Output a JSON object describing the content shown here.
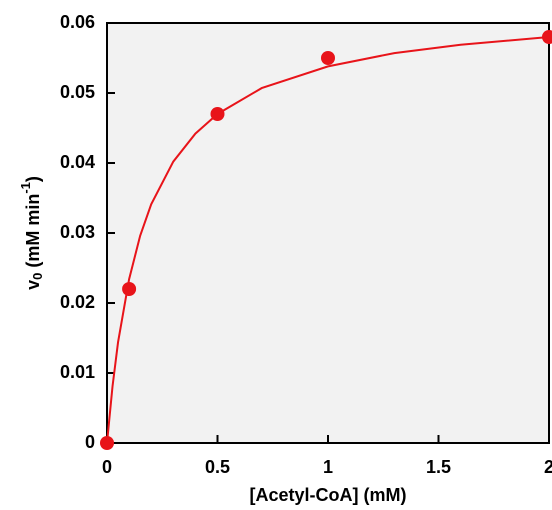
{
  "chart_data": {
    "type": "scatter",
    "xlabel": "[Acetyl-CoA] (mM)",
    "ylabel": [
      "v",
      "0",
      " (mM min",
      "-1",
      ")"
    ],
    "xlim": [
      0,
      2
    ],
    "xticks": [
      0,
      0.5,
      1,
      1.5,
      2
    ],
    "ylim": [
      0,
      0.06
    ],
    "yticks": [
      0,
      0.01,
      0.02,
      0.03,
      0.04,
      0.05,
      0.06
    ],
    "series": [
      {
        "style": "markers",
        "color": "#e8141a",
        "x": [
          0,
          0.1,
          0.5,
          1,
          2
        ],
        "values": [
          0,
          0.022,
          0.047,
          0.055,
          0.058
        ]
      },
      {
        "style": "line",
        "color": "#e8141a",
        "x": [
          0,
          0.025,
          0.05,
          0.1,
          0.15,
          0.2,
          0.3,
          0.4,
          0.5,
          0.7,
          1,
          1.3,
          1.6,
          2
        ],
        "values": [
          0,
          0.0081,
          0.0144,
          0.0234,
          0.0296,
          0.0341,
          0.0402,
          0.0442,
          0.047,
          0.0507,
          0.0538,
          0.0557,
          0.0569,
          0.058
        ]
      }
    ]
  }
}
